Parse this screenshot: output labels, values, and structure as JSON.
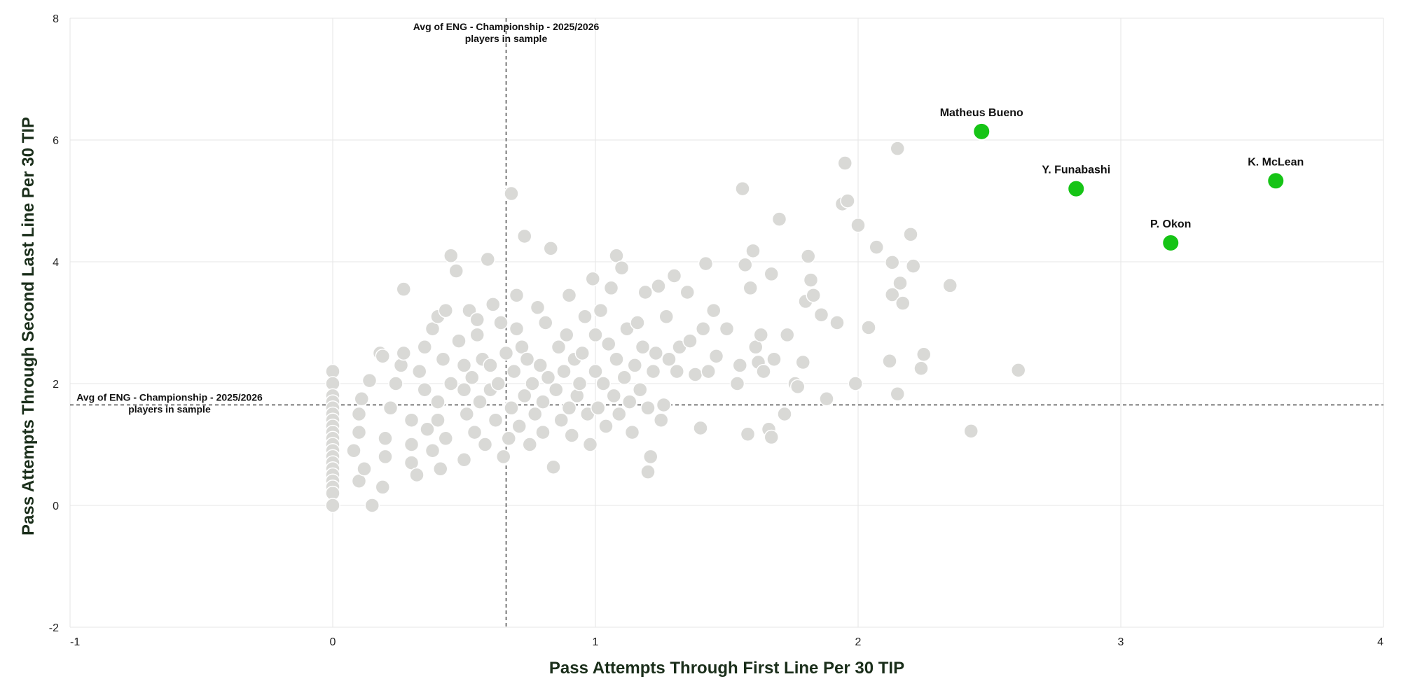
{
  "chart_data": {
    "type": "scatter",
    "title": "",
    "xlabel": "Pass Attempts Through First Line Per 30 TIP",
    "ylabel": "Pass Attempts Through Second Last Line Per 30 TIP",
    "xlim": [
      -1,
      4
    ],
    "ylim": [
      -2,
      8
    ],
    "x_ticks": [
      -1,
      0,
      1,
      2,
      3,
      4
    ],
    "y_ticks": [
      -2,
      0,
      2,
      4,
      6,
      8
    ],
    "grid": true,
    "colors": {
      "points": "#d9d9d6",
      "point_stroke": "#ffffff",
      "highlight": "#16c416",
      "grid": "#e6e6e6",
      "reference_line": "#555555"
    },
    "reference_lines": [
      {
        "axis": "x",
        "value": 0.66,
        "label_line1": "Avg of ENG - Championship - 2025/2026",
        "label_line2": "players in sample"
      },
      {
        "axis": "y",
        "value": 1.65,
        "label_line1": "Avg of ENG - Championship - 2025/2026",
        "label_line2": "players in sample"
      }
    ],
    "highlighted": [
      {
        "name": "Matheus Bueno",
        "x": 2.47,
        "y": 6.14
      },
      {
        "name": "Y. Funabashi",
        "x": 2.83,
        "y": 5.2
      },
      {
        "name": "K. McLean",
        "x": 3.59,
        "y": 5.33
      },
      {
        "name": "P. Okon",
        "x": 3.19,
        "y": 4.31
      }
    ],
    "points": [
      [
        0,
        2.2
      ],
      [
        0,
        2.0
      ],
      [
        0,
        1.8
      ],
      [
        0,
        1.7
      ],
      [
        0,
        1.6
      ],
      [
        0,
        1.5
      ],
      [
        0,
        1.4
      ],
      [
        0,
        1.3
      ],
      [
        0,
        1.2
      ],
      [
        0,
        1.1
      ],
      [
        0,
        1.0
      ],
      [
        0,
        0.9
      ],
      [
        0,
        0.8
      ],
      [
        0,
        0.7
      ],
      [
        0,
        0.6
      ],
      [
        0,
        0.5
      ],
      [
        0,
        0.4
      ],
      [
        0,
        0.3
      ],
      [
        0,
        0.2
      ],
      [
        0,
        0.0
      ],
      [
        0.15,
        0.0
      ],
      [
        0.1,
        0.4
      ],
      [
        0.12,
        0.6
      ],
      [
        0.08,
        0.9
      ],
      [
        0.1,
        1.2
      ],
      [
        0.1,
        1.5
      ],
      [
        0.11,
        1.75
      ],
      [
        0.14,
        2.05
      ],
      [
        0.18,
        2.5
      ],
      [
        0.19,
        2.45
      ],
      [
        0.2,
        1.1
      ],
      [
        0.2,
        0.8
      ],
      [
        0.19,
        0.3
      ],
      [
        0.22,
        1.6
      ],
      [
        0.24,
        2.0
      ],
      [
        0.26,
        2.3
      ],
      [
        0.27,
        2.5
      ],
      [
        0.27,
        3.55
      ],
      [
        0.3,
        1.4
      ],
      [
        0.3,
        1.0
      ],
      [
        0.3,
        0.7
      ],
      [
        0.32,
        0.5
      ],
      [
        0.33,
        2.2
      ],
      [
        0.35,
        1.9
      ],
      [
        0.35,
        2.6
      ],
      [
        0.36,
        1.25
      ],
      [
        0.38,
        0.9
      ],
      [
        0.38,
        2.9
      ],
      [
        0.4,
        3.1
      ],
      [
        0.4,
        1.7
      ],
      [
        0.4,
        1.4
      ],
      [
        0.41,
        0.6
      ],
      [
        0.42,
        2.4
      ],
      [
        0.43,
        1.1
      ],
      [
        0.43,
        3.2
      ],
      [
        0.45,
        2.0
      ],
      [
        0.45,
        4.1
      ],
      [
        0.47,
        3.85
      ],
      [
        0.48,
        2.7
      ],
      [
        0.5,
        1.9
      ],
      [
        0.5,
        2.3
      ],
      [
        0.5,
        0.75
      ],
      [
        0.51,
        1.5
      ],
      [
        0.52,
        3.2
      ],
      [
        0.53,
        2.1
      ],
      [
        0.54,
        1.2
      ],
      [
        0.55,
        2.8
      ],
      [
        0.55,
        3.05
      ],
      [
        0.56,
        1.7
      ],
      [
        0.57,
        2.4
      ],
      [
        0.58,
        1.0
      ],
      [
        0.59,
        4.04
      ],
      [
        0.6,
        1.9
      ],
      [
        0.6,
        2.3
      ],
      [
        0.61,
        3.3
      ],
      [
        0.62,
        1.4
      ],
      [
        0.63,
        2.0
      ],
      [
        0.64,
        3.0
      ],
      [
        0.65,
        0.8
      ],
      [
        0.66,
        2.5
      ],
      [
        0.67,
        1.1
      ],
      [
        0.68,
        5.12
      ],
      [
        0.68,
        1.6
      ],
      [
        0.69,
        2.2
      ],
      [
        0.7,
        3.45
      ],
      [
        0.7,
        2.9
      ],
      [
        0.71,
        1.3
      ],
      [
        0.72,
        2.6
      ],
      [
        0.73,
        1.8
      ],
      [
        0.73,
        4.42
      ],
      [
        0.74,
        2.4
      ],
      [
        0.75,
        1.0
      ],
      [
        0.76,
        2.0
      ],
      [
        0.77,
        1.5
      ],
      [
        0.78,
        3.25
      ],
      [
        0.79,
        2.3
      ],
      [
        0.8,
        1.7
      ],
      [
        0.8,
        1.2
      ],
      [
        0.81,
        3.0
      ],
      [
        0.82,
        2.1
      ],
      [
        0.83,
        4.22
      ],
      [
        0.84,
        0.63
      ],
      [
        0.85,
        1.9
      ],
      [
        0.86,
        2.6
      ],
      [
        0.87,
        1.4
      ],
      [
        0.88,
        2.2
      ],
      [
        0.89,
        2.8
      ],
      [
        0.9,
        1.6
      ],
      [
        0.9,
        3.45
      ],
      [
        0.91,
        1.15
      ],
      [
        0.92,
        2.4
      ],
      [
        0.93,
        1.8
      ],
      [
        0.94,
        2.0
      ],
      [
        0.95,
        2.5
      ],
      [
        0.96,
        3.1
      ],
      [
        0.97,
        1.5
      ],
      [
        0.98,
        1.0
      ],
      [
        0.99,
        3.72
      ],
      [
        1.0,
        2.2
      ],
      [
        1.0,
        2.8
      ],
      [
        1.01,
        1.6
      ],
      [
        1.02,
        3.2
      ],
      [
        1.03,
        2.0
      ],
      [
        1.04,
        1.3
      ],
      [
        1.05,
        2.65
      ],
      [
        1.06,
        3.57
      ],
      [
        1.07,
        1.8
      ],
      [
        1.08,
        4.1
      ],
      [
        1.08,
        2.4
      ],
      [
        1.09,
        1.5
      ],
      [
        1.1,
        3.9
      ],
      [
        1.11,
        2.1
      ],
      [
        1.12,
        2.9
      ],
      [
        1.13,
        1.7
      ],
      [
        1.14,
        1.2
      ],
      [
        1.15,
        2.3
      ],
      [
        1.16,
        3.0
      ],
      [
        1.17,
        1.9
      ],
      [
        1.18,
        2.6
      ],
      [
        1.19,
        3.5
      ],
      [
        1.2,
        1.6
      ],
      [
        1.2,
        0.55
      ],
      [
        1.21,
        0.8
      ],
      [
        1.22,
        2.2
      ],
      [
        1.23,
        2.5
      ],
      [
        1.24,
        3.6
      ],
      [
        1.25,
        1.4
      ],
      [
        1.26,
        1.65
      ],
      [
        1.27,
        3.1
      ],
      [
        1.28,
        2.4
      ],
      [
        1.3,
        3.77
      ],
      [
        1.31,
        2.2
      ],
      [
        1.32,
        2.6
      ],
      [
        1.35,
        3.5
      ],
      [
        1.36,
        2.7
      ],
      [
        1.38,
        2.15
      ],
      [
        1.4,
        1.27
      ],
      [
        1.41,
        2.9
      ],
      [
        1.42,
        3.97
      ],
      [
        1.43,
        2.2
      ],
      [
        1.45,
        3.2
      ],
      [
        1.46,
        2.45
      ],
      [
        1.5,
        2.9
      ],
      [
        1.54,
        2.0
      ],
      [
        1.55,
        2.3
      ],
      [
        1.56,
        5.2
      ],
      [
        1.57,
        3.95
      ],
      [
        1.58,
        1.17
      ],
      [
        1.59,
        3.57
      ],
      [
        1.6,
        4.18
      ],
      [
        1.61,
        2.6
      ],
      [
        1.62,
        2.35
      ],
      [
        1.63,
        2.8
      ],
      [
        1.64,
        2.2
      ],
      [
        1.66,
        1.25
      ],
      [
        1.67,
        1.12
      ],
      [
        1.67,
        3.8
      ],
      [
        1.68,
        2.4
      ],
      [
        1.7,
        4.7
      ],
      [
        1.72,
        1.5
      ],
      [
        1.73,
        2.8
      ],
      [
        1.76,
        2.0
      ],
      [
        1.77,
        1.95
      ],
      [
        1.79,
        2.35
      ],
      [
        1.8,
        3.35
      ],
      [
        1.81,
        4.09
      ],
      [
        1.82,
        3.7
      ],
      [
        1.83,
        3.45
      ],
      [
        1.86,
        3.13
      ],
      [
        1.88,
        1.75
      ],
      [
        1.92,
        3.0
      ],
      [
        1.94,
        4.95
      ],
      [
        1.95,
        5.62
      ],
      [
        1.96,
        5.0
      ],
      [
        1.99,
        2.0
      ],
      [
        2.0,
        4.6
      ],
      [
        2.04,
        2.92
      ],
      [
        2.07,
        4.24
      ],
      [
        2.12,
        2.37
      ],
      [
        2.13,
        3.99
      ],
      [
        2.13,
        3.46
      ],
      [
        2.15,
        5.86
      ],
      [
        2.15,
        1.83
      ],
      [
        2.16,
        3.65
      ],
      [
        2.17,
        3.32
      ],
      [
        2.2,
        4.45
      ],
      [
        2.21,
        3.93
      ],
      [
        2.24,
        2.25
      ],
      [
        2.25,
        2.48
      ],
      [
        2.35,
        3.61
      ],
      [
        2.43,
        1.22
      ],
      [
        2.61,
        2.22
      ]
    ]
  }
}
